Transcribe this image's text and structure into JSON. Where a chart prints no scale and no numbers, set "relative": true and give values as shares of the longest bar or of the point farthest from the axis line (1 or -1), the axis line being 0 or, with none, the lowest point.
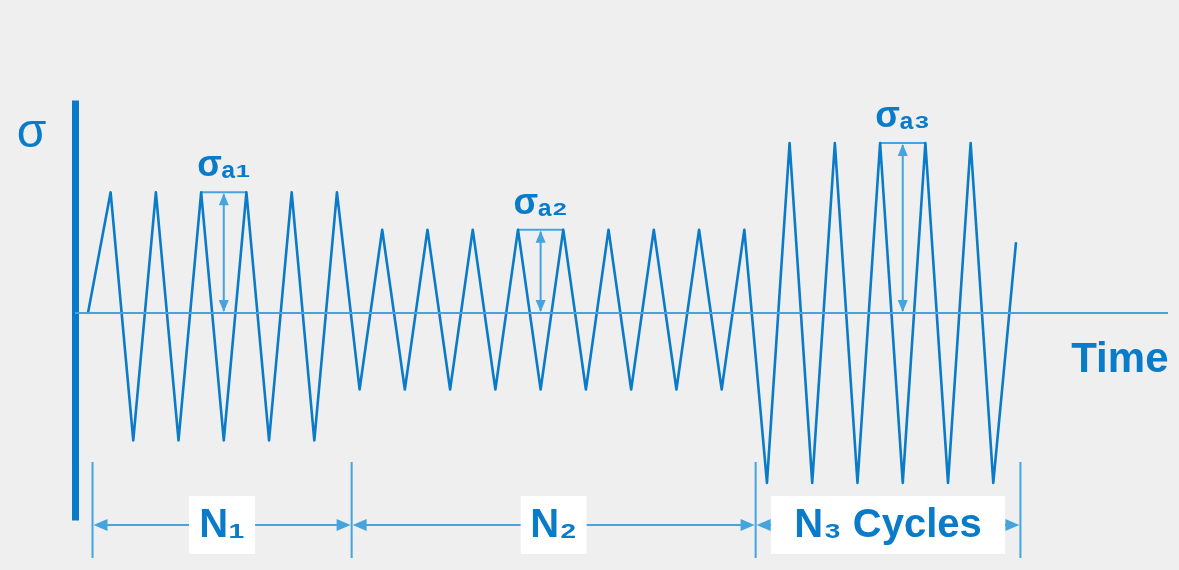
{
  "chart_data": {
    "type": "line",
    "relative": true,
    "ylabel": "σ",
    "xlabel": "Time",
    "marker": "none",
    "categories": [
      null,
      null,
      null,
      null,
      null,
      null,
      null,
      null,
      null,
      null,
      null,
      null,
      null,
      null,
      null,
      null,
      null,
      null,
      null,
      null,
      null,
      null,
      null,
      null,
      null,
      null,
      null,
      null,
      null,
      null,
      null,
      null,
      null,
      null,
      null,
      null,
      null,
      null,
      null,
      null,
      null,
      null
    ],
    "series": [
      {
        "color": "#0a7bc8",
        "values": [
          0,
          0.71,
          -0.75,
          0.71,
          -0.75,
          0.71,
          -0.75,
          0.71,
          -0.75,
          0.71,
          -0.75,
          0.71,
          -0.45,
          0.49,
          -0.45,
          0.49,
          -0.45,
          0.49,
          -0.45,
          0.49,
          -0.45,
          0.49,
          -0.45,
          0.49,
          -0.45,
          0.49,
          -0.45,
          0.49,
          -0.45,
          0.49,
          -1,
          1,
          -1,
          1,
          -1,
          1,
          -1,
          1,
          -1,
          1,
          -1,
          0.41
        ]
      }
    ],
    "ref_lines": [
      {
        "axis": "y",
        "value": 0,
        "color": "#45a3dd"
      }
    ],
    "annotations": [
      "σₐ₁",
      "σₐ₂",
      "σₐ₃",
      "N₁",
      "N₂",
      "N₃ Cycles"
    ]
  }
}
